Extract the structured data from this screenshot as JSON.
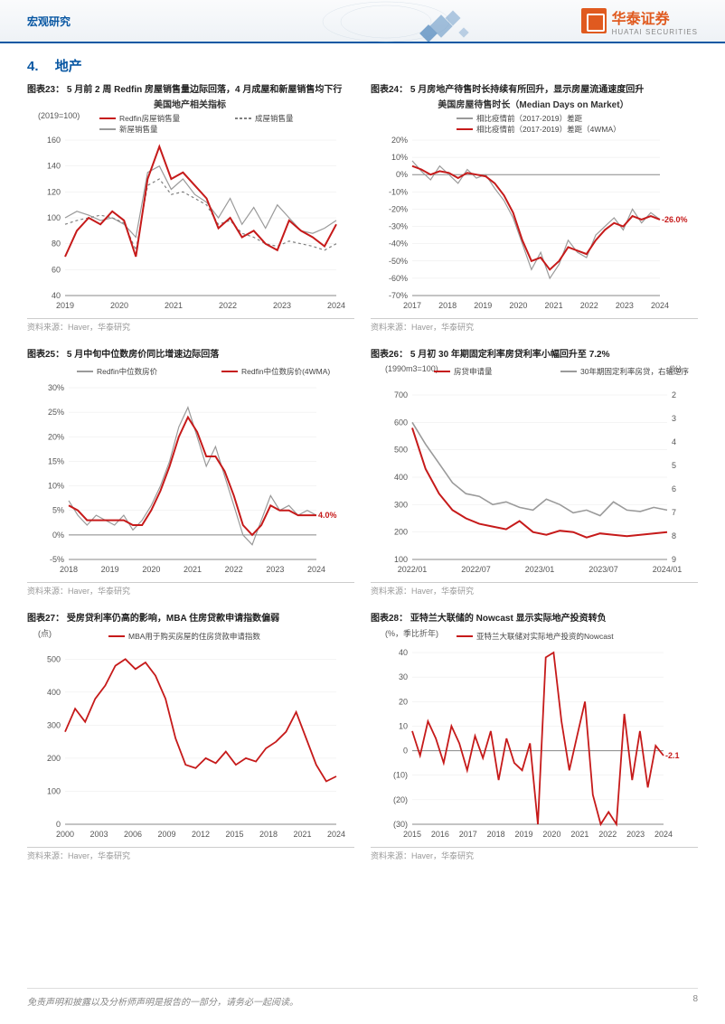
{
  "header": {
    "category": "宏观研究",
    "logo_name": "华泰证券",
    "logo_sub": "HUATAI SECURITIES"
  },
  "section": {
    "number": "4.",
    "title": "地产"
  },
  "footer": {
    "disclaimer": "免责声明和披露以及分析师声明是报告的一部分，请务必一起阅读。",
    "page": "8"
  },
  "source_text": "资料来源：Haver，华泰研究",
  "colors": {
    "primary_red": "#c61a1a",
    "grey_line": "#9a9a9a",
    "axis": "#666666",
    "grid": "#e8e8e8",
    "dash": "#808080",
    "label_red": "#c61a1a"
  },
  "charts": {
    "c23": {
      "caption": "图表23： 5 月前 2 周 Redfin 房屋销售量边际回落，4 月成屋和新屋销售均下行",
      "subtitle": "美国地产相关指标",
      "y_unit": "(2019=100)",
      "legend": [
        {
          "label": "Redfin房屋销售量",
          "color": "#c61a1a",
          "style": "solid"
        },
        {
          "label": "成屋销售量",
          "color": "#808080",
          "style": "dash"
        },
        {
          "label": "新屋销售量",
          "color": "#9a9a9a",
          "style": "solid"
        }
      ],
      "x_ticks": [
        "2019",
        "2020",
        "2021",
        "2022",
        "2023",
        "2024"
      ],
      "y_ticks": [
        40,
        60,
        80,
        100,
        120,
        140,
        160
      ],
      "ylim": [
        40,
        160
      ],
      "series": {
        "redfin": [
          70,
          90,
          100,
          95,
          105,
          98,
          70,
          130,
          155,
          130,
          135,
          125,
          115,
          92,
          100,
          85,
          90,
          80,
          75,
          98,
          90,
          85,
          78,
          95
        ],
        "existing": [
          95,
          98,
          100,
          102,
          100,
          96,
          75,
          125,
          130,
          118,
          120,
          115,
          110,
          95,
          98,
          88,
          85,
          80,
          78,
          82,
          80,
          78,
          75,
          80
        ],
        "new": [
          100,
          105,
          102,
          98,
          100,
          95,
          85,
          135,
          140,
          122,
          130,
          118,
          112,
          100,
          115,
          95,
          108,
          92,
          110,
          100,
          90,
          88,
          92,
          98
        ]
      }
    },
    "c24": {
      "caption": "图表24： 5 月房地产待售时长持续有所回升，显示房屋流通速度回升",
      "subtitle": "美国房屋待售时长（Median Days on Market）",
      "legend": [
        {
          "label": "相比疫情前（2017-2019）差距",
          "color": "#9a9a9a",
          "style": "solid"
        },
        {
          "label": "相比疫情前（2017-2019）差距（4WMA）",
          "color": "#c61a1a",
          "style": "solid"
        }
      ],
      "x_ticks": [
        "2017",
        "2018",
        "2019",
        "2020",
        "2021",
        "2022",
        "2023",
        "2024"
      ],
      "y_ticks": [
        "-70%",
        "-60%",
        "-50%",
        "-40%",
        "-30%",
        "-20%",
        "-10%",
        "0%",
        "10%",
        "20%"
      ],
      "ylim": [
        -70,
        20
      ],
      "end_label": "-26.0%",
      "series": {
        "grey": [
          8,
          2,
          -3,
          5,
          0,
          -5,
          3,
          -2,
          0,
          -8,
          -15,
          -25,
          -40,
          -55,
          -45,
          -60,
          -52,
          -38,
          -45,
          -48,
          -35,
          -30,
          -25,
          -32,
          -20,
          -28,
          -22,
          -26
        ],
        "red": [
          5,
          3,
          0,
          2,
          1,
          -2,
          1,
          0,
          -1,
          -5,
          -12,
          -22,
          -38,
          -50,
          -48,
          -55,
          -50,
          -42,
          -44,
          -46,
          -38,
          -32,
          -28,
          -30,
          -24,
          -26,
          -24,
          -26
        ]
      }
    },
    "c25": {
      "caption": "图表25： 5 月中旬中位数房价同比增速边际回落",
      "legend": [
        {
          "label": "Redfin中位数房价",
          "color": "#9a9a9a",
          "style": "solid"
        },
        {
          "label": "Redfin中位数房价(4WMA)",
          "color": "#c61a1a",
          "style": "solid"
        }
      ],
      "x_ticks": [
        "2018",
        "2019",
        "2020",
        "2021",
        "2022",
        "2023",
        "2024"
      ],
      "y_ticks": [
        "-5%",
        "0%",
        "5%",
        "10%",
        "15%",
        "20%",
        "25%",
        "30%"
      ],
      "ylim": [
        -5,
        30
      ],
      "end_label": "4.0%",
      "series": {
        "grey": [
          7,
          4,
          2,
          4,
          3,
          2,
          4,
          1,
          3,
          6,
          10,
          15,
          22,
          26,
          20,
          14,
          18,
          12,
          6,
          0,
          -2,
          3,
          8,
          5,
          6,
          4,
          5,
          4
        ],
        "red": [
          6,
          5,
          3,
          3,
          3,
          3,
          3,
          2,
          2,
          5,
          9,
          14,
          20,
          24,
          21,
          16,
          16,
          13,
          8,
          2,
          0,
          2,
          6,
          5,
          5,
          4,
          4,
          4
        ]
      }
    },
    "c26": {
      "caption": "图表26： 5 月初 30 年期固定利率房贷利率小幅回升至 7.2%",
      "y_left_unit": "(1990m3=100)",
      "y_right_unit": "(%)",
      "legend": [
        {
          "label": "房贷申请量",
          "color": "#c61a1a",
          "style": "solid"
        },
        {
          "label": "30年期固定利率房贷，右轴逆序",
          "color": "#9a9a9a",
          "style": "solid"
        }
      ],
      "x_ticks": [
        "2022/01",
        "2022/07",
        "2023/01",
        "2023/07",
        "2024/01"
      ],
      "y_left_ticks": [
        100,
        200,
        300,
        400,
        500,
        600,
        700
      ],
      "y_right_ticks": [
        2,
        3,
        4,
        5,
        6,
        7,
        8,
        9
      ],
      "ylim_left": [
        100,
        700
      ],
      "ylim_right_inverted": [
        9,
        2
      ],
      "series": {
        "red": [
          580,
          430,
          340,
          280,
          250,
          230,
          220,
          210,
          240,
          200,
          190,
          205,
          200,
          180,
          195,
          190,
          185,
          190,
          195,
          200
        ],
        "grey": [
          600,
          520,
          450,
          380,
          340,
          330,
          300,
          310,
          290,
          280,
          320,
          300,
          270,
          280,
          260,
          310,
          280,
          275,
          290,
          280
        ]
      }
    },
    "c27": {
      "caption": "图表27： 受房贷利率仍高的影响，MBA 住房贷款申请指数偏弱",
      "y_unit": "(点)",
      "legend": [
        {
          "label": "MBA用于购买房屋的住房贷款申请指数",
          "color": "#c61a1a",
          "style": "solid"
        }
      ],
      "x_ticks": [
        "2000",
        "2003",
        "2006",
        "2009",
        "2012",
        "2015",
        "2018",
        "2021",
        "2024"
      ],
      "y_ticks": [
        0,
        100,
        200,
        300,
        400,
        500
      ],
      "ylim": [
        0,
        520
      ],
      "series": {
        "red": [
          280,
          350,
          310,
          380,
          420,
          480,
          500,
          470,
          490,
          450,
          380,
          260,
          180,
          170,
          200,
          185,
          220,
          180,
          200,
          190,
          230,
          250,
          280,
          340,
          260,
          180,
          130,
          145
        ]
      }
    },
    "c28": {
      "caption": "图表28： 亚特兰大联储的 Nowcast 显示实际地产投资转负",
      "y_unit": "(%，季比折年)",
      "legend": [
        {
          "label": "亚特兰大联储对实际地产投资的Nowcast",
          "color": "#c61a1a",
          "style": "solid"
        }
      ],
      "x_ticks": [
        "2015",
        "2016",
        "2017",
        "2018",
        "2019",
        "2020",
        "2021",
        "2022",
        "2023",
        "2024"
      ],
      "y_ticks": [
        "(30)",
        "(20)",
        "(10)",
        "0",
        "10",
        "20",
        "30",
        "40"
      ],
      "ylim": [
        -30,
        40
      ],
      "end_label": "-2.1",
      "series": {
        "red": [
          8,
          -2,
          12,
          5,
          -5,
          10,
          3,
          -8,
          6,
          -3,
          8,
          -12,
          5,
          -5,
          -8,
          3,
          -30,
          38,
          40,
          12,
          -8,
          6,
          20,
          -18,
          -30,
          -25,
          -30,
          15,
          -12,
          8,
          -15,
          2,
          -2
        ]
      }
    }
  }
}
